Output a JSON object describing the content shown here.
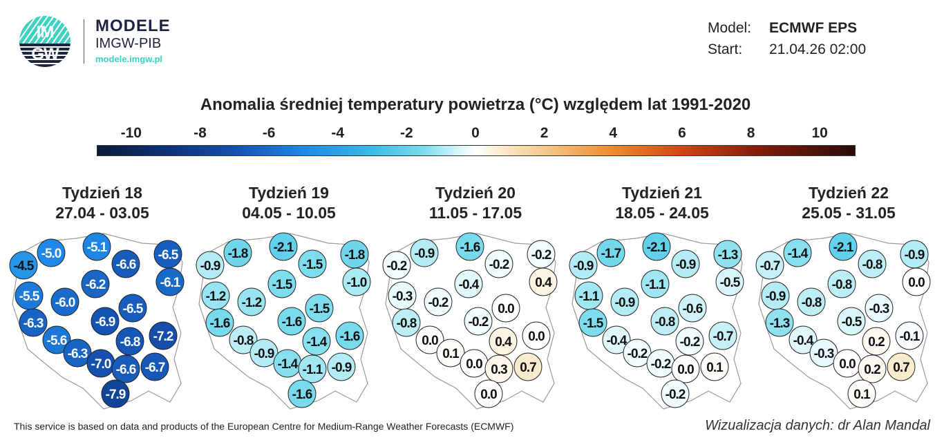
{
  "logo": {
    "letters_top": "IM",
    "letters_bottom": "GW",
    "brand": "MODELE",
    "org": "IMGW-PIB",
    "url": "modele.imgw.pl"
  },
  "meta": {
    "model_label": "Model:",
    "model_value": "ECMWF EPS",
    "start_label": "Start:",
    "start_value": "21.04.26 02:00"
  },
  "chart_data": {
    "type": "map-choropleth-points",
    "title": "Anomalia średniej temperatury powietrza (°C) względem lat 1991-2020",
    "colorbar": {
      "ticks": [
        "-10",
        "-8",
        "-6",
        "-4",
        "-2",
        "0",
        "2",
        "4",
        "6",
        "8",
        "10"
      ],
      "range": [
        -11,
        11
      ],
      "stops": [
        [
          -11,
          "#0a1a3a"
        ],
        [
          -9,
          "#0d3278"
        ],
        [
          -7,
          "#1550b0"
        ],
        [
          -5,
          "#1e88e8"
        ],
        [
          -3,
          "#38bde6"
        ],
        [
          -1.5,
          "#7ddcee"
        ],
        [
          -0.5,
          "#d8f6fa"
        ],
        [
          0,
          "#ffffff"
        ],
        [
          0.5,
          "#fbf0dc"
        ],
        [
          1,
          "#f8e4bc"
        ],
        [
          2,
          "#f5c88a"
        ],
        [
          4,
          "#ee8a2a"
        ],
        [
          6,
          "#d04512"
        ],
        [
          8,
          "#8a1e0c"
        ],
        [
          11,
          "#2a0a08"
        ]
      ]
    },
    "maps": [
      {
        "week": "Tydzień 18",
        "dates": "27.04 - 03.05",
        "values": [
          -4.5,
          -5.0,
          -5.1,
          -6.6,
          -6.5,
          -6.1,
          -6.2,
          -5.5,
          -6.0,
          -6.5,
          -6.9,
          -6.3,
          -5.6,
          -6.8,
          -7.2,
          -6.3,
          -7.0,
          -6.6,
          -6.7,
          -7.9
        ]
      },
      {
        "week": "Tydzień 19",
        "dates": "04.05 - 10.05",
        "values": [
          -0.9,
          -1.8,
          -2.1,
          -1.5,
          -1.8,
          -1.0,
          -1.5,
          -1.2,
          -1.2,
          -1.5,
          -1.6,
          -1.6,
          -0.8,
          -1.4,
          -1.6,
          -0.9,
          -1.4,
          -1.1,
          -0.9,
          -1.6
        ]
      },
      {
        "week": "Tydzień 20",
        "dates": "11.05 - 17.05",
        "values": [
          -0.2,
          -0.9,
          -1.6,
          -0.2,
          -0.2,
          0.4,
          -0.4,
          -0.3,
          -0.2,
          0.0,
          -0.2,
          -0.8,
          0.0,
          0.4,
          0.0,
          0.1,
          0.0,
          0.3,
          0.7,
          0.0
        ]
      },
      {
        "week": "Tydzień 21",
        "dates": "18.05 - 24.05",
        "values": [
          -0.9,
          -1.7,
          -2.1,
          -0.9,
          -1.3,
          -0.5,
          -1.1,
          -1.1,
          -0.9,
          -0.6,
          -0.8,
          -1.5,
          -0.4,
          -0.2,
          -0.7,
          -0.2,
          -0.2,
          0.0,
          0.1,
          -0.2
        ]
      },
      {
        "week": "Tydzień 22",
        "dates": "25.05 - 31.05",
        "values": [
          -0.7,
          -1.4,
          -2.1,
          -0.8,
          -0.9,
          0.0,
          -0.8,
          -0.9,
          -0.8,
          -0.3,
          -0.5,
          -1.3,
          -0.4,
          0.2,
          -0.1,
          -0.3,
          0.0,
          0.2,
          0.7,
          0.1
        ]
      }
    ]
  },
  "footer": {
    "disclaimer": "This service is based on data and products of the European Centre for Medium-Range Weather Forecasts (ECMWF)",
    "credit": "Wizualizacja danych: dr Alan Mandal"
  }
}
